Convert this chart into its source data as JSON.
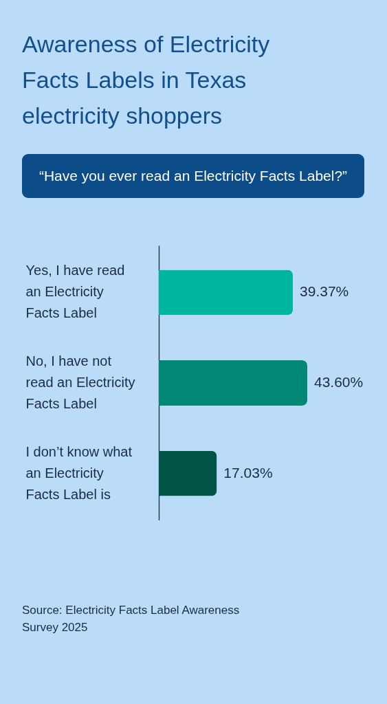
{
  "chart_data": {
    "type": "bar",
    "orientation": "horizontal",
    "title": "Awareness of Electricity Facts Labels in Texas electricity shoppers",
    "subtitle": "“Have you ever read an Electricity Facts Label?”",
    "categories": [
      "Yes, I have read an Electricity Facts Label",
      "No, I have not read an Electricity Facts Label",
      "I don’t know what an Electricity Facts Label is"
    ],
    "values": [
      39.37,
      43.6,
      17.03
    ],
    "colors": [
      "#00b5a0",
      "#008874",
      "#005546"
    ],
    "value_labels": [
      "39.37%",
      "43.60%",
      "17.03%"
    ],
    "tick_labels": "y",
    "annotations": [
      "Source: Electricity Facts Label Awareness Survey 2025"
    ]
  }
}
